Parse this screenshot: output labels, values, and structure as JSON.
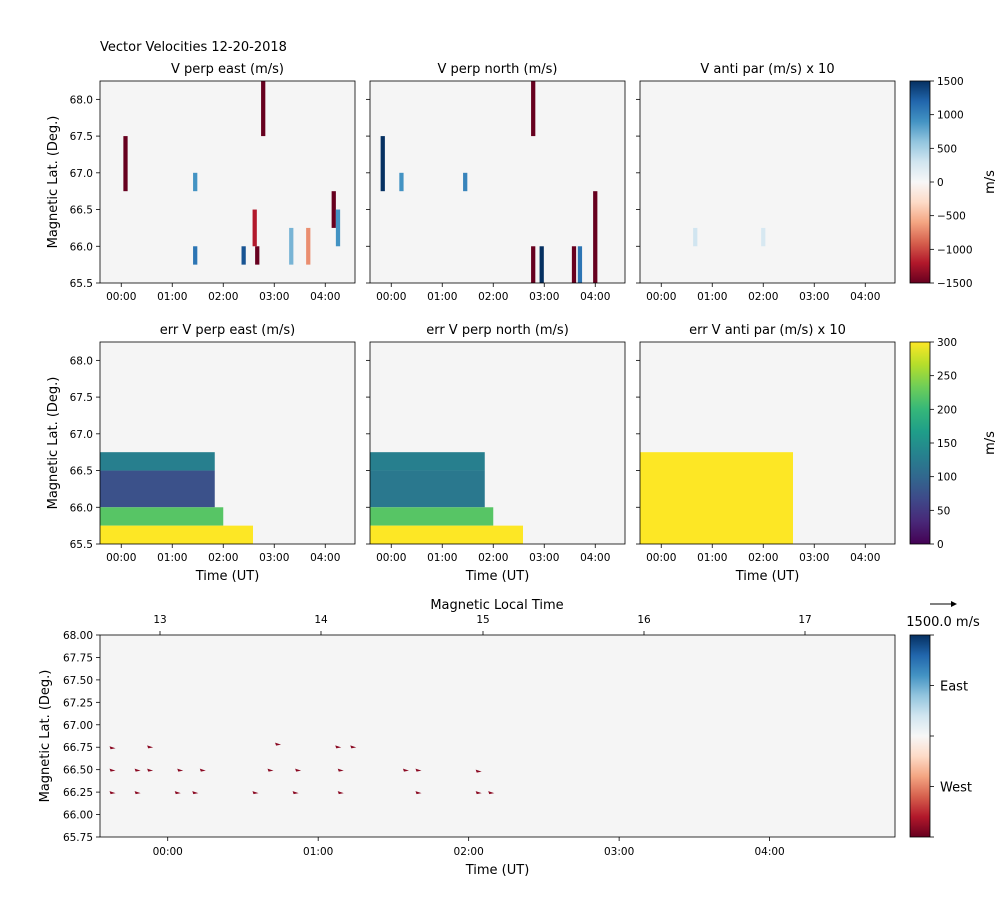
{
  "figure": {
    "title": "Vector Velocities 12-20-2018"
  },
  "colors": {
    "panel_background": "#f5f5f5",
    "rdbu_stops": [
      "#67001f",
      "#b2182b",
      "#d6604d",
      "#f4a582",
      "#fddbc7",
      "#f7f7f7",
      "#d1e5f0",
      "#92c5de",
      "#4393c3",
      "#2166ac",
      "#053061"
    ],
    "viridis_stops": [
      "#440154",
      "#482878",
      "#3e4989",
      "#31688e",
      "#26828e",
      "#1f9e89",
      "#35b779",
      "#6ece58",
      "#b5de2b",
      "#fde725"
    ]
  },
  "chart_data": [
    {
      "type": "heatmap",
      "title": "V perp east (m/s)",
      "ylabel": "Magnetic Lat. (Deg.)",
      "xlabel": "",
      "xlim": [
        "23:35",
        "04:35"
      ],
      "ylim": [
        65.5,
        68.25
      ],
      "x_ticks": [
        "00:00",
        "01:00",
        "02:00",
        "03:00",
        "04:00"
      ],
      "y_ticks": [
        "65.5",
        "66.0",
        "66.5",
        "67.0",
        "67.5",
        "68.0"
      ],
      "colormap": "RdBu",
      "clim": [
        -1500,
        1500
      ],
      "cells": [
        {
          "t": "00:05",
          "lat_range": [
            66.75,
            67.5
          ],
          "value": -1500
        },
        {
          "t": "02:47",
          "lat_range": [
            67.5,
            68.25
          ],
          "value": -1500
        },
        {
          "t": "04:10",
          "lat_range": [
            66.25,
            66.75
          ],
          "value": -1500
        },
        {
          "t": "01:27",
          "lat_range": [
            66.75,
            67.0
          ],
          "value": 900
        },
        {
          "t": "01:27",
          "lat_range": [
            65.75,
            66.0
          ],
          "value": 1100
        },
        {
          "t": "02:24",
          "lat_range": [
            65.75,
            66.0
          ],
          "value": 1300
        },
        {
          "t": "02:40",
          "lat_range": [
            65.75,
            66.0
          ],
          "value": -1500
        },
        {
          "t": "02:37",
          "lat_range": [
            66.0,
            66.5
          ],
          "value": -1200
        },
        {
          "t": "04:15",
          "lat_range": [
            66.0,
            66.5
          ],
          "value": 900
        },
        {
          "t": "03:40",
          "lat_range": [
            65.75,
            66.25
          ],
          "value": -700
        },
        {
          "t": "03:20",
          "lat_range": [
            65.75,
            66.25
          ],
          "value": 700
        }
      ]
    },
    {
      "type": "heatmap",
      "title": "V perp north (m/s)",
      "xlabel": "",
      "xlim": [
        "23:35",
        "04:35"
      ],
      "ylim": [
        65.5,
        68.25
      ],
      "x_ticks": [
        "00:00",
        "01:00",
        "02:00",
        "03:00",
        "04:00"
      ],
      "colormap": "RdBu",
      "clim": [
        -1500,
        1500
      ],
      "cells": [
        {
          "t": "23:50",
          "lat_range": [
            66.75,
            67.5
          ],
          "value": 1500
        },
        {
          "t": "02:47",
          "lat_range": [
            67.5,
            68.25
          ],
          "value": -1500
        },
        {
          "t": "02:47",
          "lat_range": [
            65.5,
            66.0
          ],
          "value": -1500
        },
        {
          "t": "03:35",
          "lat_range": [
            65.5,
            66.0
          ],
          "value": -1500
        },
        {
          "t": "04:00",
          "lat_range": [
            65.5,
            66.75
          ],
          "value": -1500
        },
        {
          "t": "02:57",
          "lat_range": [
            65.5,
            66.0
          ],
          "value": 1500
        },
        {
          "t": "03:42",
          "lat_range": [
            65.5,
            66.0
          ],
          "value": 1100
        },
        {
          "t": "00:12",
          "lat_range": [
            66.75,
            67.0
          ],
          "value": 900
        },
        {
          "t": "01:27",
          "lat_range": [
            66.75,
            67.0
          ],
          "value": 1000
        }
      ]
    },
    {
      "type": "heatmap",
      "title": "V anti par (m/s) x 10",
      "xlabel": "",
      "xlim": [
        "23:35",
        "04:35"
      ],
      "ylim": [
        65.5,
        68.25
      ],
      "x_ticks": [
        "00:00",
        "01:00",
        "02:00",
        "03:00",
        "04:00"
      ],
      "colormap": "RdBu",
      "clim": [
        -1500,
        1500
      ],
      "colorbar": {
        "label": "m/s",
        "ticks": [
          "1500",
          "1000",
          "500",
          "0",
          "−500",
          "−1000",
          "−1500"
        ]
      },
      "cells": [
        {
          "t": "00:40",
          "lat_range": [
            66.0,
            66.25
          ],
          "value": 300
        },
        {
          "t": "02:00",
          "lat_range": [
            66.0,
            66.25
          ],
          "value": 250
        }
      ]
    },
    {
      "type": "heatmap",
      "title": "err V perp east (m/s)",
      "ylabel": "Magnetic Lat. (Deg.)",
      "xlabel": "Time (UT)",
      "xlim": [
        "23:35",
        "04:35"
      ],
      "ylim": [
        65.5,
        68.25
      ],
      "x_ticks": [
        "00:00",
        "01:00",
        "02:00",
        "03:00",
        "04:00"
      ],
      "y_ticks": [
        "65.5",
        "66.0",
        "66.5",
        "67.0",
        "67.5",
        "68.0"
      ],
      "colormap": "viridis",
      "clim": [
        0,
        300
      ],
      "cells": [
        {
          "t_range": [
            "23:35",
            "01:50"
          ],
          "lat_range": [
            66.0,
            66.5
          ],
          "value": 75
        },
        {
          "t_range": [
            "23:35",
            "01:50"
          ],
          "lat_range": [
            66.5,
            66.75
          ],
          "value": 130
        },
        {
          "t_range": [
            "23:35",
            "02:00"
          ],
          "lat_range": [
            65.75,
            66.0
          ],
          "value": 220
        },
        {
          "t_range": [
            "23:35",
            "02:35"
          ],
          "lat_range": [
            65.5,
            65.75
          ],
          "value": 300
        }
      ]
    },
    {
      "type": "heatmap",
      "title": "err V perp north (m/s)",
      "xlabel": "Time (UT)",
      "xlim": [
        "23:35",
        "04:35"
      ],
      "ylim": [
        65.5,
        68.25
      ],
      "x_ticks": [
        "00:00",
        "01:00",
        "02:00",
        "03:00",
        "04:00"
      ],
      "colormap": "viridis",
      "clim": [
        0,
        300
      ],
      "cells": [
        {
          "t_range": [
            "23:35",
            "01:50"
          ],
          "lat_range": [
            66.0,
            66.5
          ],
          "value": 120
        },
        {
          "t_range": [
            "23:35",
            "01:50"
          ],
          "lat_range": [
            66.5,
            66.75
          ],
          "value": 130
        },
        {
          "t_range": [
            "23:35",
            "02:00"
          ],
          "lat_range": [
            65.75,
            66.0
          ],
          "value": 220
        },
        {
          "t_range": [
            "23:35",
            "02:35"
          ],
          "lat_range": [
            65.5,
            65.75
          ],
          "value": 300
        }
      ]
    },
    {
      "type": "heatmap",
      "title": "err V anti par (m/s) x 10",
      "xlabel": "Time (UT)",
      "xlim": [
        "23:35",
        "04:35"
      ],
      "ylim": [
        65.5,
        68.25
      ],
      "x_ticks": [
        "00:00",
        "01:00",
        "02:00",
        "03:00",
        "04:00"
      ],
      "colormap": "viridis",
      "clim": [
        0,
        300
      ],
      "colorbar": {
        "label": "m/s",
        "ticks": [
          "300",
          "250",
          "200",
          "150",
          "100",
          "50",
          "0"
        ]
      },
      "cells": [
        {
          "t_range": [
            "23:35",
            "02:35"
          ],
          "lat_range": [
            65.5,
            66.75
          ],
          "value": 300
        }
      ]
    },
    {
      "type": "scatter",
      "title": "",
      "xlabel": "Time (UT)",
      "ylabel": "Magnetic Lat. (Deg.)",
      "top_xlabel": "Magnetic Local Time",
      "top_x_ticks": [
        "13",
        "14",
        "15",
        "16",
        "17"
      ],
      "xlim": [
        "23:33",
        "04:50"
      ],
      "ylim": [
        65.75,
        68.0
      ],
      "x_ticks": [
        "00:00",
        "01:00",
        "02:00",
        "03:00",
        "04:00"
      ],
      "y_ticks": [
        "68.00",
        "67.75",
        "67.50",
        "67.25",
        "67.00",
        "66.75",
        "66.50",
        "66.25",
        "66.00",
        "65.75"
      ],
      "colorbar": {
        "labels": [
          "East",
          "West"
        ]
      },
      "legend": {
        "key_label": "1500.0 m/s"
      },
      "vectors": [
        {
          "t": "23:38",
          "lat": 66.75
        },
        {
          "t": "23:53",
          "lat": 66.76
        },
        {
          "t": "00:44",
          "lat": 66.79
        },
        {
          "t": "01:08",
          "lat": 66.76
        },
        {
          "t": "01:14",
          "lat": 66.76
        },
        {
          "t": "23:38",
          "lat": 66.5
        },
        {
          "t": "23:48",
          "lat": 66.5
        },
        {
          "t": "23:53",
          "lat": 66.5
        },
        {
          "t": "00:05",
          "lat": 66.5
        },
        {
          "t": "00:14",
          "lat": 66.5
        },
        {
          "t": "00:41",
          "lat": 66.5
        },
        {
          "t": "00:52",
          "lat": 66.5
        },
        {
          "t": "01:09",
          "lat": 66.5
        },
        {
          "t": "01:35",
          "lat": 66.5
        },
        {
          "t": "01:40",
          "lat": 66.5
        },
        {
          "t": "02:04",
          "lat": 66.49
        },
        {
          "t": "23:38",
          "lat": 66.25
        },
        {
          "t": "23:48",
          "lat": 66.25
        },
        {
          "t": "00:04",
          "lat": 66.25
        },
        {
          "t": "00:11",
          "lat": 66.25
        },
        {
          "t": "00:35",
          "lat": 66.25
        },
        {
          "t": "00:51",
          "lat": 66.25
        },
        {
          "t": "01:09",
          "lat": 66.25
        },
        {
          "t": "01:40",
          "lat": 66.25
        },
        {
          "t": "02:04",
          "lat": 66.25
        },
        {
          "t": "02:09",
          "lat": 66.25
        }
      ]
    }
  ]
}
